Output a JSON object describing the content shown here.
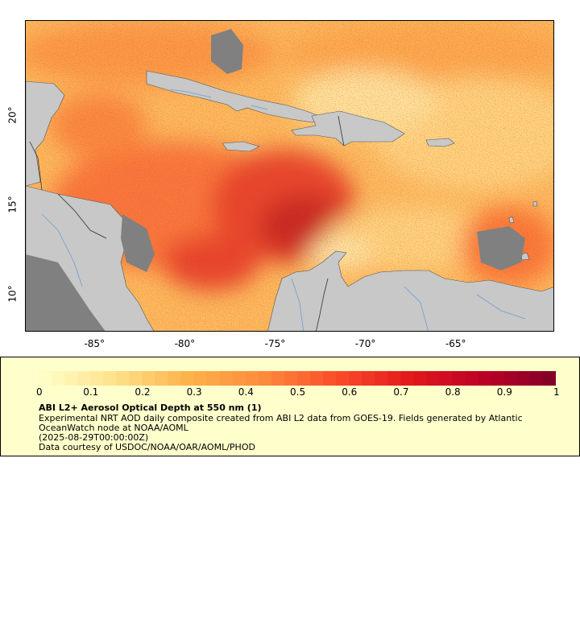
{
  "map": {
    "x_ticks": [
      "-85°",
      "-80°",
      "-75°",
      "-70°",
      "-65°"
    ],
    "y_ticks": [
      "20°",
      "15°",
      "10°"
    ],
    "lon_range": [
      -88.9,
      -59.6
    ],
    "lat_range": [
      7.9,
      25.4
    ],
    "land_color": "#c8c8c8",
    "lake_color": "#808080",
    "border_color": "#555555",
    "river_color": "#6a9ed0"
  },
  "legend": {
    "colorbar_ticks": [
      "0",
      "0.1",
      "0.2",
      "0.3",
      "0.4",
      "0.5",
      "0.6",
      "0.7",
      "0.8",
      "0.9",
      "1"
    ],
    "colorbar_range": [
      0,
      1
    ],
    "colorbar_colors": [
      "#ffffcc",
      "#fee38c",
      "#feb24c",
      "#fd8d3c",
      "#fc4e2a",
      "#e31a1c",
      "#bd0026",
      "#800026"
    ],
    "title": "ABI L2+ Aerosol Optical Depth at 550 nm (1)",
    "line1": "Experimental NRT AOD daily composite created from ABI L2 data from GOES-19. Fields generated by Atlantic OceanWatch node at NOAA/AOML",
    "line2": "(2025-08-29T00:00:00Z)",
    "line3": "Data courtesy of USDOC/NOAA/OAR/AOML/PHOD"
  }
}
